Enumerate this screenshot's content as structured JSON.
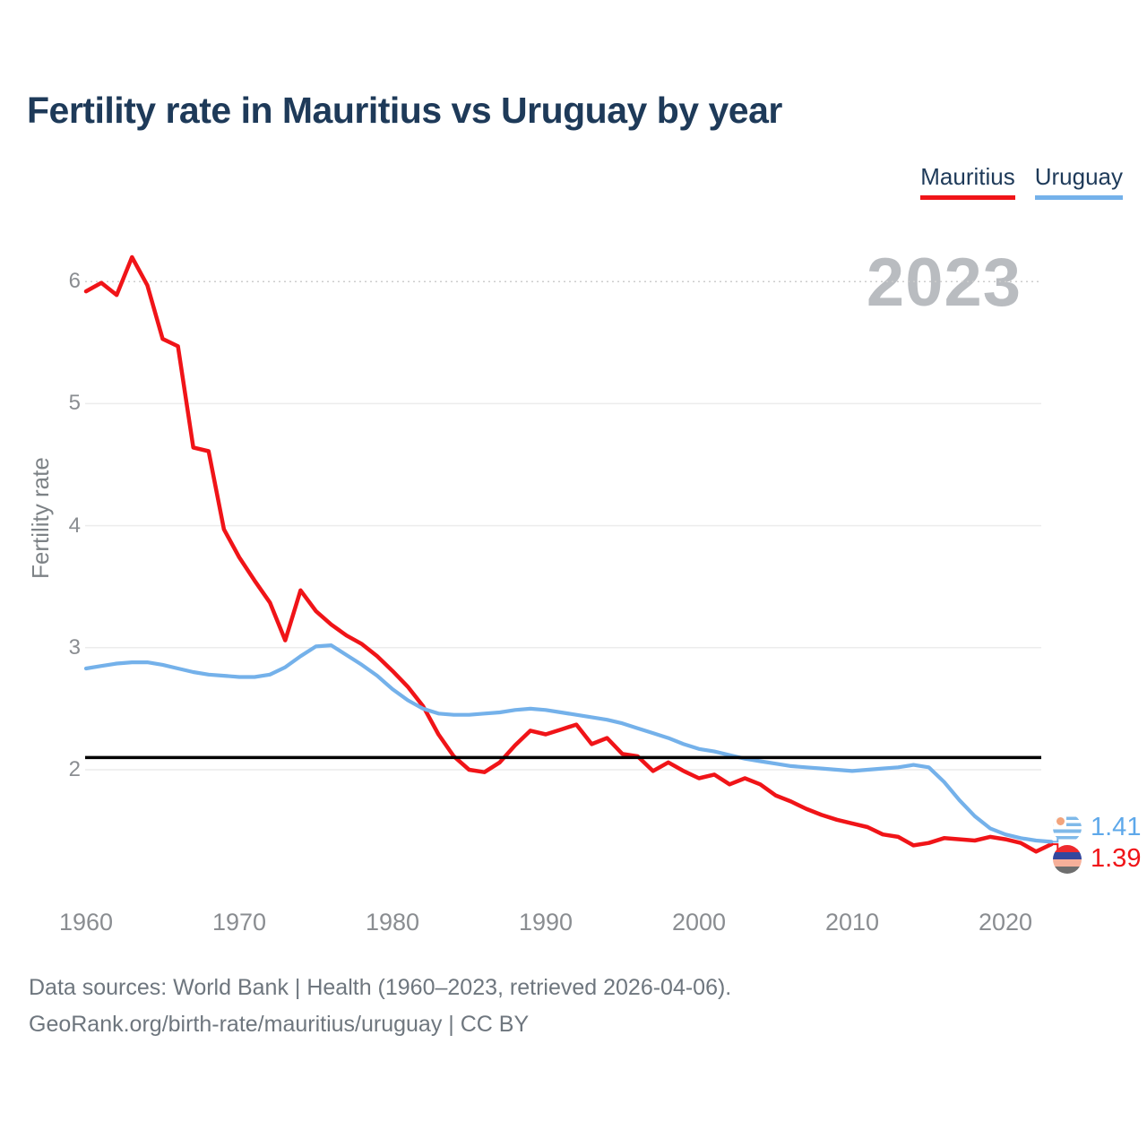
{
  "title": "Fertility rate in Mauritius vs Uruguay by year",
  "legend": [
    {
      "label": "Mauritius",
      "color": "#f01418"
    },
    {
      "label": "Uruguay",
      "color": "#74b1ea"
    }
  ],
  "watermark": "2023",
  "y_axis": {
    "label": "Fertility rate",
    "ticks": [
      6,
      5,
      4,
      3,
      2
    ]
  },
  "x_axis": {
    "ticks": [
      1960,
      1970,
      1980,
      1990,
      2000,
      2010,
      2020
    ]
  },
  "reference_line": {
    "value": 2.1,
    "color": "#000000"
  },
  "end_labels": [
    {
      "series": "Uruguay",
      "value": "1.41",
      "flag": "uruguay-flag",
      "color": "#5ea8ea"
    },
    {
      "series": "Mauritius",
      "value": "1.39",
      "flag": "mauritius-flag",
      "color": "#f01418"
    }
  ],
  "footer": {
    "line1": "Data sources: World Bank | Health (1960–2023, retrieved 2026-04-06).",
    "line2": "GeoRank.org/birth-rate/mauritius/uruguay | CC BY"
  },
  "chart_data": {
    "type": "line",
    "title": "Fertility rate in Mauritius vs Uruguay by year",
    "xlabel": "",
    "ylabel": "Fertility rate",
    "ylim": [
      1.0,
      6.4
    ],
    "xlim": [
      1960,
      2023
    ],
    "grid": "horizontal",
    "legend_position": "top-right",
    "annotation_hline": 2.1,
    "x": [
      1960,
      1961,
      1962,
      1963,
      1964,
      1965,
      1966,
      1967,
      1968,
      1969,
      1970,
      1971,
      1972,
      1973,
      1974,
      1975,
      1976,
      1977,
      1978,
      1979,
      1980,
      1981,
      1982,
      1983,
      1984,
      1985,
      1986,
      1987,
      1988,
      1989,
      1990,
      1991,
      1992,
      1993,
      1994,
      1995,
      1996,
      1997,
      1998,
      1999,
      2000,
      2001,
      2002,
      2003,
      2004,
      2005,
      2006,
      2007,
      2008,
      2009,
      2010,
      2011,
      2012,
      2013,
      2014,
      2015,
      2016,
      2017,
      2018,
      2019,
      2020,
      2021,
      2022,
      2023
    ],
    "series": [
      {
        "name": "Mauritius",
        "color": "#f01418",
        "values": [
          5.92,
          5.99,
          5.89,
          6.2,
          5.97,
          5.53,
          5.47,
          4.64,
          4.61,
          3.97,
          3.74,
          3.55,
          3.37,
          3.06,
          3.47,
          3.3,
          3.19,
          3.1,
          3.03,
          2.93,
          2.81,
          2.68,
          2.52,
          2.29,
          2.11,
          2.0,
          1.98,
          2.06,
          2.2,
          2.32,
          2.29,
          2.33,
          2.37,
          2.21,
          2.26,
          2.13,
          2.11,
          1.99,
          2.06,
          1.99,
          1.93,
          1.96,
          1.88,
          1.93,
          1.88,
          1.79,
          1.74,
          1.68,
          1.63,
          1.59,
          1.56,
          1.53,
          1.47,
          1.45,
          1.38,
          1.4,
          1.44,
          1.43,
          1.42,
          1.45,
          1.43,
          1.4,
          1.33,
          1.39
        ]
      },
      {
        "name": "Uruguay",
        "color": "#74b1ea",
        "values": [
          2.83,
          2.85,
          2.87,
          2.88,
          2.88,
          2.86,
          2.83,
          2.8,
          2.78,
          2.77,
          2.76,
          2.76,
          2.78,
          2.84,
          2.93,
          3.01,
          3.02,
          2.94,
          2.86,
          2.77,
          2.66,
          2.57,
          2.5,
          2.46,
          2.45,
          2.45,
          2.46,
          2.47,
          2.49,
          2.5,
          2.49,
          2.47,
          2.45,
          2.43,
          2.41,
          2.38,
          2.34,
          2.3,
          2.26,
          2.21,
          2.17,
          2.15,
          2.12,
          2.09,
          2.07,
          2.05,
          2.03,
          2.02,
          2.01,
          2.0,
          1.99,
          2.0,
          2.01,
          2.02,
          2.04,
          2.02,
          1.9,
          1.75,
          1.62,
          1.52,
          1.47,
          1.44,
          1.42,
          1.41
        ]
      }
    ]
  }
}
